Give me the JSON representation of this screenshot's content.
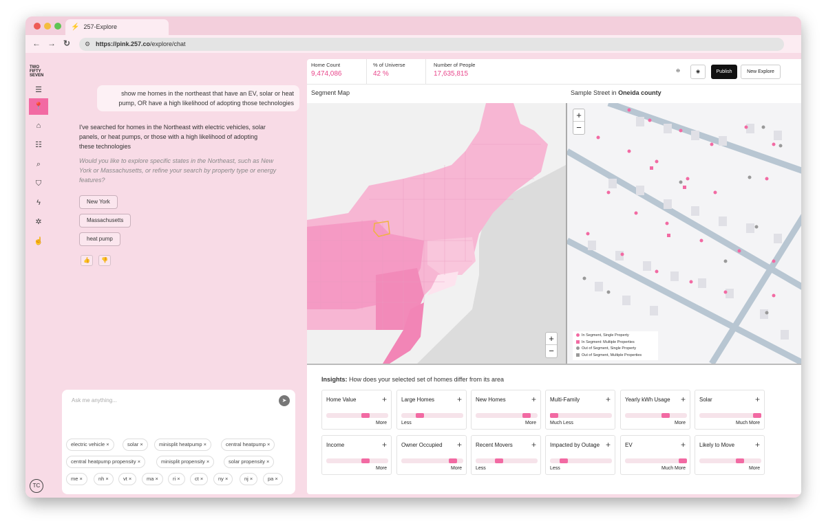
{
  "browser": {
    "tab_title": "257-Explore",
    "url_bold": "https://pink.257.co",
    "url_rest": "/explore/chat"
  },
  "logo": {
    "line1": "TWO",
    "line2": "FIFTY",
    "line3": "SEVEN"
  },
  "user": {
    "initials": "TC"
  },
  "chat": {
    "user_message": "show me homes in the northeast that have an EV, solar or heat pump, OR have a high likelihood of adopting those technologies",
    "assistant_message": "I've searched for homes in the Northeast with electric vehicles, solar panels, or heat pumps, or those with a high likelihood of adopting these technologies",
    "assistant_question": "Would you like to explore specific states in the Northeast, such as New York or Massachusetts, or refine your search by property type or energy features?",
    "suggestions": [
      "New York",
      "Massachusetts",
      "heat pump"
    ],
    "input_placeholder": "Ask me anything...",
    "filters": [
      "electric vehicle",
      "solar",
      "minisplit heatpump",
      "central heatpump",
      "central heatpump propensity",
      "minisplit propensity",
      "solar propensity",
      "me",
      "nh",
      "vt",
      "ma",
      "ri",
      "ct",
      "ny",
      "nj",
      "pa"
    ]
  },
  "stats": [
    {
      "label": "Home Count",
      "value": "9,474,086"
    },
    {
      "label": "% of Universe",
      "value": "42 %"
    },
    {
      "label": "Number of People",
      "value": "17,635,815"
    }
  ],
  "toolbar": {
    "publish": "Publish",
    "new_explore": "New Explore"
  },
  "segment_map": {
    "title": "Segment Map"
  },
  "street_map": {
    "title_prefix": "Sample Street in",
    "county": "Oneida county",
    "legend": [
      "In Segment, Single Property",
      "In Segment: Multiple Properties",
      "Out of Segment, Single Property",
      "Out of Segment, Multiple Properties"
    ]
  },
  "insights": {
    "title": "Insights:",
    "subtitle": "How does your selected set of homes differ from its area",
    "cards": [
      {
        "name": "Home Value",
        "direction": "More",
        "level": 0.63
      },
      {
        "name": "Large Homes",
        "direction": "Less",
        "level": 0.3
      },
      {
        "name": "New Homes",
        "direction": "More",
        "level": 0.82
      },
      {
        "name": "Multi-Family",
        "direction": "Much Less",
        "level": 0.06
      },
      {
        "name": "Yearly kWh Usage",
        "direction": "More",
        "level": 0.65
      },
      {
        "name": "Solar",
        "direction": "Much More",
        "level": 0.95
      },
      {
        "name": "Income",
        "direction": "More",
        "level": 0.63
      },
      {
        "name": "Owner Occupied",
        "direction": "More",
        "level": 0.83
      },
      {
        "name": "Recent Movers",
        "direction": "Less",
        "level": 0.38
      },
      {
        "name": "Impacted by Outage",
        "direction": "Less",
        "level": 0.22
      },
      {
        "name": "EV",
        "direction": "Much More",
        "level": 0.93
      },
      {
        "name": "Likely to Move",
        "direction": "More",
        "level": 0.66
      }
    ]
  },
  "colors": {
    "accent": "#e8468b",
    "bar": "#f26aa3",
    "sidebar": "#f8dbe6"
  }
}
